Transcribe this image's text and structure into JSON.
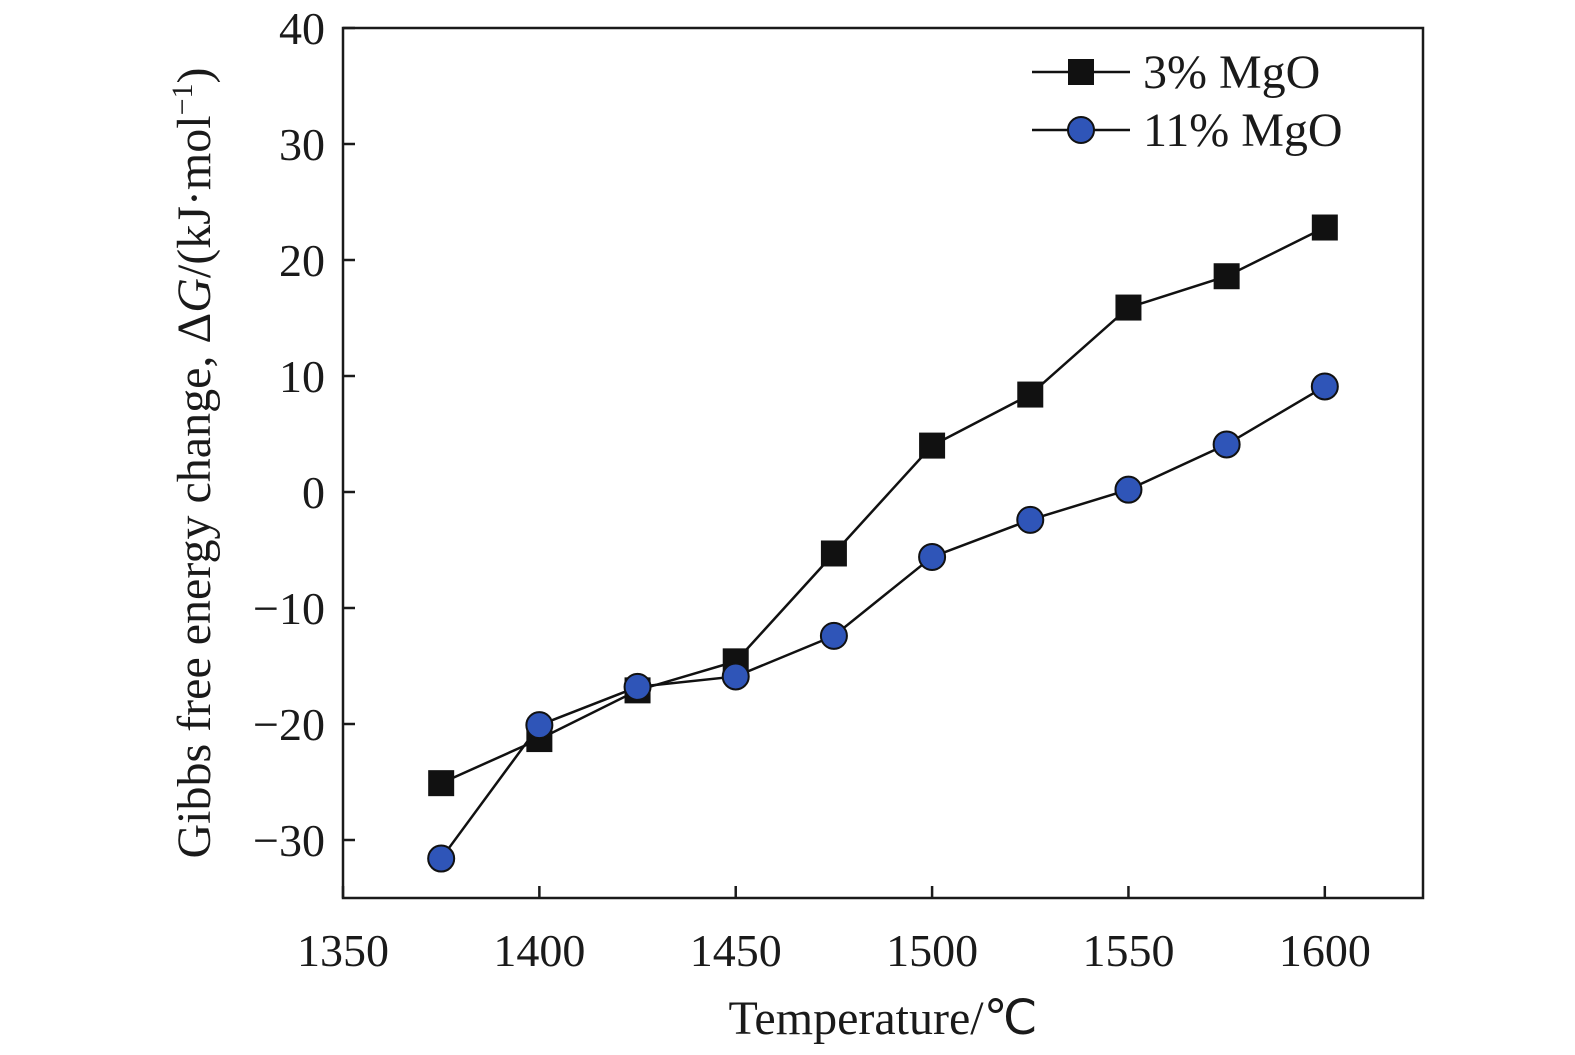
{
  "chart_data": {
    "type": "line",
    "xlabel": "Temperature/℃",
    "ylabel_parts": {
      "before": "Gibbs free energy change, Δ",
      "italic": "G",
      "after": "/(kJ·mol",
      "superscript": "−1",
      "close": ")"
    },
    "xlim": [
      1350,
      1625
    ],
    "ylim": [
      -35,
      40
    ],
    "x_ticks": [
      1350,
      1400,
      1450,
      1500,
      1550,
      1600
    ],
    "x_tick_labels": [
      "1350",
      "1400",
      "1450",
      "1500",
      "1550",
      "1600"
    ],
    "y_ticks": [
      -30,
      -20,
      -10,
      0,
      10,
      20,
      30,
      40
    ],
    "y_tick_labels": [
      "−30",
      "−20",
      "−10",
      "0",
      "10",
      "20",
      "30",
      "40"
    ],
    "grid": false,
    "legend_position": "top-right",
    "x": [
      1375,
      1400,
      1425,
      1450,
      1475,
      1500,
      1525,
      1550,
      1575,
      1600
    ],
    "series": [
      {
        "name": "3% MgO",
        "marker": "square",
        "color": "#111111",
        "values": [
          -25.1,
          -21.3,
          -17.1,
          -14.6,
          -5.3,
          4.0,
          8.4,
          15.9,
          18.6,
          22.8
        ]
      },
      {
        "name": "11% MgO",
        "marker": "circle",
        "color": "#2f55b8",
        "values": [
          -31.6,
          -20.1,
          -16.8,
          -15.9,
          -12.4,
          -5.6,
          -2.4,
          0.2,
          4.1,
          9.1
        ]
      }
    ]
  }
}
